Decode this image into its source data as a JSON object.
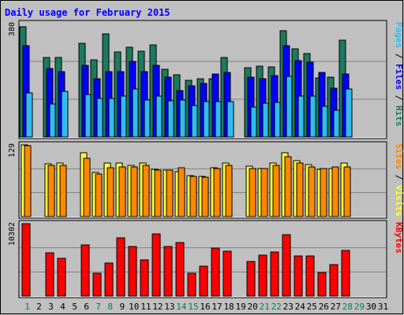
{
  "chart_data": {
    "type": "bar",
    "title": "Daily usage for February 2015",
    "days": [
      "1",
      "2",
      "3",
      "4",
      "5",
      "6",
      "7",
      "8",
      "9",
      "10",
      "11",
      "12",
      "13",
      "14",
      "15",
      "16",
      "17",
      "18",
      "19",
      "20",
      "21",
      "22",
      "23",
      "24",
      "25",
      "26",
      "27",
      "28",
      "29",
      "30",
      "31"
    ],
    "weekend_days": [
      "1",
      "7",
      "8",
      "14",
      "15",
      "21",
      "22",
      "28",
      "29"
    ],
    "panels": [
      {
        "name": "pages-files-hits",
        "axis_label": "Pages / Files / Hits",
        "ymax_label": "380",
        "ymax": 380,
        "series": [
          {
            "name": "Hits",
            "color": "#1c7b5e",
            "values": [
              370,
              0,
              266,
              267,
              0,
              313,
              258,
              345,
              285,
              300,
              287,
              308,
              227,
              208,
              191,
              195,
              195,
              266,
              0,
              232,
              237,
              236,
              355,
              296,
              280,
              198,
              200,
              324,
              0,
              0,
              0
            ]
          },
          {
            "name": "Files",
            "color": "#0000ff",
            "values": [
              307,
              0,
              230,
              220,
              0,
              239,
              196,
              220,
              220,
              254,
              220,
              240,
              200,
              155,
              172,
              180,
              212,
              216,
              0,
              201,
              195,
              205,
              305,
              255,
              252,
              216,
              164,
              212,
              0,
              0,
              0
            ]
          },
          {
            "name": "Pages",
            "color": "#33bbee",
            "values": [
              148,
              0,
              110,
              152,
              0,
              142,
              128,
              128,
              138,
              160,
              124,
              138,
              122,
              124,
              105,
              119,
              118,
              119,
              0,
              100,
              113,
              116,
              204,
              138,
              138,
              103,
              91,
              162,
              0,
              0,
              0
            ]
          }
        ]
      },
      {
        "name": "sites-visits",
        "axis_label": "Sites / Visits",
        "ymax_label": "129",
        "ymax": 129,
        "series": [
          {
            "name": "Visits",
            "color": "#ffff33",
            "values": [
              129,
              0,
              95,
              96,
              0,
              115,
              79,
              96,
              96,
              92,
              96,
              85,
              84,
              81,
              74,
              73,
              88,
              97,
              0,
              91,
              86,
              96,
              115,
              101,
              94,
              85,
              86,
              96,
              0,
              0,
              0
            ]
          },
          {
            "name": "Sites",
            "color": "#ff8800",
            "values": [
              127,
              0,
              92,
              92,
              0,
              105,
              76,
              88,
              90,
              90,
              92,
              83,
              83,
              88,
              73,
              71,
              86,
              92,
              0,
              86,
              86,
              92,
              108,
              97,
              89,
              87,
              89,
              90,
              0,
              0,
              0
            ]
          }
        ]
      },
      {
        "name": "kbytes",
        "axis_label": "KBytes",
        "ymax_label": "10302",
        "ymax": 10302,
        "series": [
          {
            "name": "KBytes",
            "color": "#ff0000",
            "values": [
              10302,
              0,
              6187,
              5333,
              0,
              7332,
              3260,
              4699,
              8245,
              7087,
              5110,
              8874,
              7060,
              7632,
              3194,
              4269,
              6824,
              6377,
              0,
              4948,
              5813,
              6267,
              8699,
              5745,
              5671,
              3408,
              4456,
              6511,
              0,
              0,
              0
            ]
          }
        ]
      }
    ]
  },
  "colors": {
    "background": "#c0c0c0",
    "title": "#0000ff",
    "grid": "#808080",
    "weekday_label": "#000000",
    "weekend_label": "#00805c"
  }
}
